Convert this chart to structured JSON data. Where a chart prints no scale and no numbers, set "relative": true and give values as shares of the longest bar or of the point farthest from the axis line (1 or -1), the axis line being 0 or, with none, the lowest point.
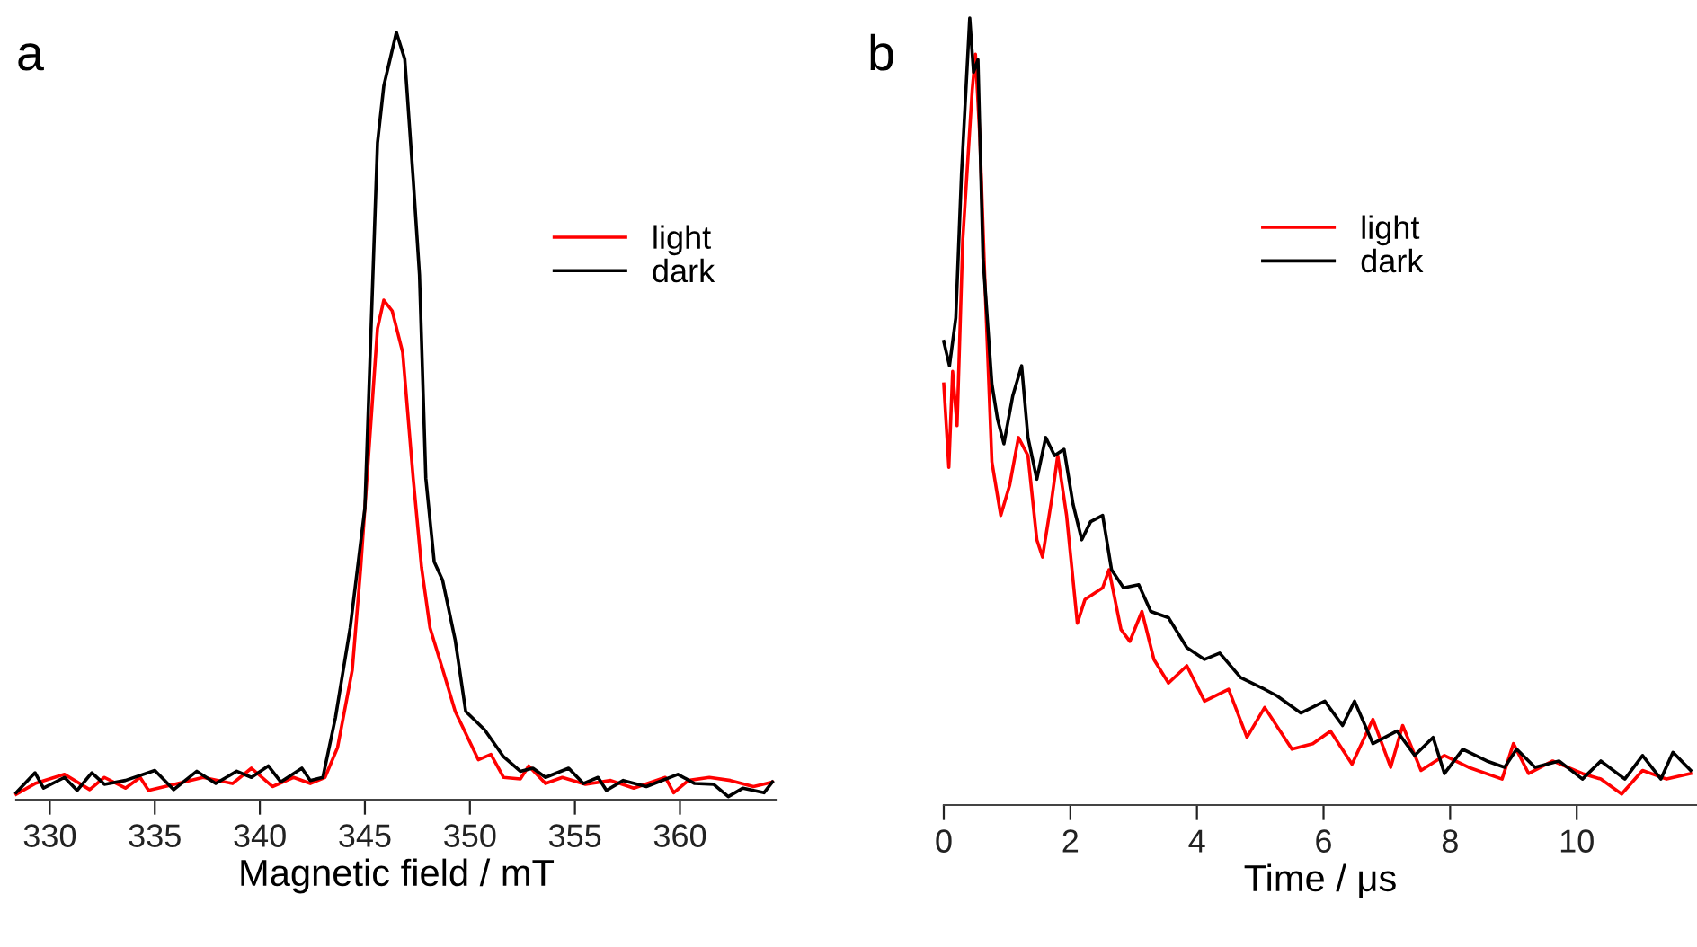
{
  "chart_data": [
    {
      "type": "line",
      "title": "a",
      "xlabel": "Magnetic field / mT",
      "relative": true,
      "xlim": [
        328.4,
        364.6
      ],
      "xticks": [
        330,
        335,
        340,
        345,
        350,
        355,
        360
      ],
      "legend": "top right",
      "grid": false,
      "tick_labels": "x",
      "line_style": "solid",
      "series": [
        {
          "name": "light",
          "color": "#ff0000",
          "x": [
            328.4,
            329.3,
            330.7,
            331.9,
            332.6,
            333.6,
            334.3,
            334.7,
            336.1,
            337.3,
            338.7,
            339.6,
            340.6,
            341.6,
            342.4,
            343.1,
            343.7,
            344.4,
            344.8,
            345.3,
            345.6,
            345.9,
            346.3,
            346.8,
            347.3,
            347.7,
            348.1,
            348.8,
            349.3,
            350.4,
            351.0,
            351.6,
            352.4,
            352.8,
            353.6,
            354.4,
            355.5,
            356.7,
            357.8,
            359.3,
            359.7,
            360.4,
            361.4,
            362.4,
            363.5,
            364.4
          ],
          "values": [
            0.007,
            0.021,
            0.033,
            0.013,
            0.029,
            0.015,
            0.029,
            0.012,
            0.021,
            0.029,
            0.021,
            0.041,
            0.017,
            0.029,
            0.021,
            0.029,
            0.068,
            0.169,
            0.302,
            0.497,
            0.614,
            0.651,
            0.637,
            0.583,
            0.419,
            0.302,
            0.224,
            0.161,
            0.115,
            0.052,
            0.059,
            0.029,
            0.027,
            0.044,
            0.021,
            0.029,
            0.02,
            0.025,
            0.015,
            0.029,
            0.009,
            0.025,
            0.029,
            0.025,
            0.017,
            0.023
          ]
        },
        {
          "name": "dark",
          "color": "#000000",
          "x": [
            328.4,
            329.3,
            329.7,
            330.7,
            331.3,
            332.0,
            332.6,
            333.6,
            335.0,
            335.9,
            337.0,
            337.9,
            338.9,
            339.6,
            340.4,
            341.0,
            342.0,
            342.4,
            343.0,
            343.6,
            344.3,
            345.0,
            345.6,
            345.9,
            346.5,
            346.9,
            347.3,
            347.6,
            347.9,
            348.3,
            348.7,
            349.3,
            349.8,
            350.7,
            351.6,
            352.4,
            353.0,
            353.6,
            354.7,
            355.4,
            356.1,
            356.5,
            357.3,
            358.4,
            359.9,
            360.7,
            361.6,
            362.3,
            363.0,
            364.0,
            364.4
          ],
          "values": [
            0.009,
            0.035,
            0.015,
            0.029,
            0.012,
            0.035,
            0.02,
            0.025,
            0.038,
            0.013,
            0.037,
            0.021,
            0.037,
            0.029,
            0.044,
            0.023,
            0.041,
            0.025,
            0.029,
            0.107,
            0.224,
            0.38,
            0.856,
            0.93,
            1.0,
            0.965,
            0.809,
            0.684,
            0.419,
            0.31,
            0.286,
            0.208,
            0.115,
            0.091,
            0.056,
            0.037,
            0.041,
            0.029,
            0.041,
            0.021,
            0.029,
            0.012,
            0.025,
            0.017,
            0.033,
            0.021,
            0.02,
            0.004,
            0.015,
            0.009,
            0.023
          ]
        }
      ]
    },
    {
      "type": "line",
      "title": "b",
      "xlabel": "Time / μs",
      "relative": true,
      "xlim": [
        0,
        11.9
      ],
      "xticks": [
        0,
        2,
        4,
        6,
        8,
        10
      ],
      "legend": "top",
      "grid": false,
      "tick_labels": "x",
      "line_style": "solid",
      "series": [
        {
          "name": "light",
          "color": "#ff0000",
          "x": [
            0,
            0.08,
            0.14,
            0.21,
            0.3,
            0.45,
            0.5,
            0.57,
            0.66,
            0.76,
            0.9,
            1.04,
            1.18,
            1.33,
            1.47,
            1.56,
            1.71,
            1.8,
            1.94,
            2.11,
            2.23,
            2.51,
            2.61,
            2.8,
            2.94,
            3.13,
            3.32,
            3.55,
            3.84,
            4.12,
            4.5,
            4.79,
            5.07,
            5.5,
            5.83,
            6.11,
            6.45,
            6.78,
            7.06,
            7.25,
            7.54,
            7.91,
            8.29,
            8.82,
            9.0,
            9.24,
            9.62,
            10.09,
            10.38,
            10.71,
            11.04,
            11.42,
            11.8
          ],
          "values": [
            0.535,
            0.429,
            0.551,
            0.482,
            0.718,
            0.909,
            0.954,
            0.848,
            0.642,
            0.436,
            0.368,
            0.406,
            0.467,
            0.444,
            0.337,
            0.315,
            0.391,
            0.444,
            0.368,
            0.231,
            0.261,
            0.276,
            0.299,
            0.223,
            0.208,
            0.246,
            0.185,
            0.155,
            0.177,
            0.132,
            0.147,
            0.086,
            0.124,
            0.071,
            0.078,
            0.094,
            0.052,
            0.109,
            0.048,
            0.101,
            0.044,
            0.063,
            0.048,
            0.033,
            0.078,
            0.04,
            0.056,
            0.04,
            0.033,
            0.014,
            0.044,
            0.033,
            0.04
          ]
        },
        {
          "name": "dark",
          "color": "#000000",
          "x": [
            0,
            0.09,
            0.19,
            0.28,
            0.41,
            0.47,
            0.54,
            0.62,
            0.76,
            0.85,
            0.95,
            1.09,
            1.23,
            1.33,
            1.47,
            1.61,
            1.75,
            1.9,
            2.04,
            2.18,
            2.32,
            2.51,
            2.65,
            2.84,
            3.08,
            3.27,
            3.55,
            3.84,
            4.12,
            4.36,
            4.69,
            5.07,
            5.26,
            5.64,
            6.02,
            6.3,
            6.49,
            6.78,
            7.16,
            7.44,
            7.73,
            7.91,
            8.2,
            8.58,
            8.86,
            9.05,
            9.34,
            9.72,
            10.09,
            10.38,
            10.76,
            11.04,
            11.33,
            11.52,
            11.8
          ],
          "values": [
            0.589,
            0.558,
            0.619,
            0.802,
            1.0,
            0.931,
            0.947,
            0.695,
            0.535,
            0.49,
            0.459,
            0.52,
            0.558,
            0.467,
            0.414,
            0.467,
            0.444,
            0.452,
            0.383,
            0.337,
            0.36,
            0.368,
            0.299,
            0.276,
            0.28,
            0.246,
            0.238,
            0.2,
            0.185,
            0.193,
            0.162,
            0.147,
            0.139,
            0.117,
            0.132,
            0.101,
            0.132,
            0.078,
            0.094,
            0.063,
            0.086,
            0.04,
            0.071,
            0.056,
            0.048,
            0.071,
            0.048,
            0.056,
            0.033,
            0.056,
            0.033,
            0.063,
            0.033,
            0.067,
            0.044
          ]
        }
      ]
    }
  ]
}
